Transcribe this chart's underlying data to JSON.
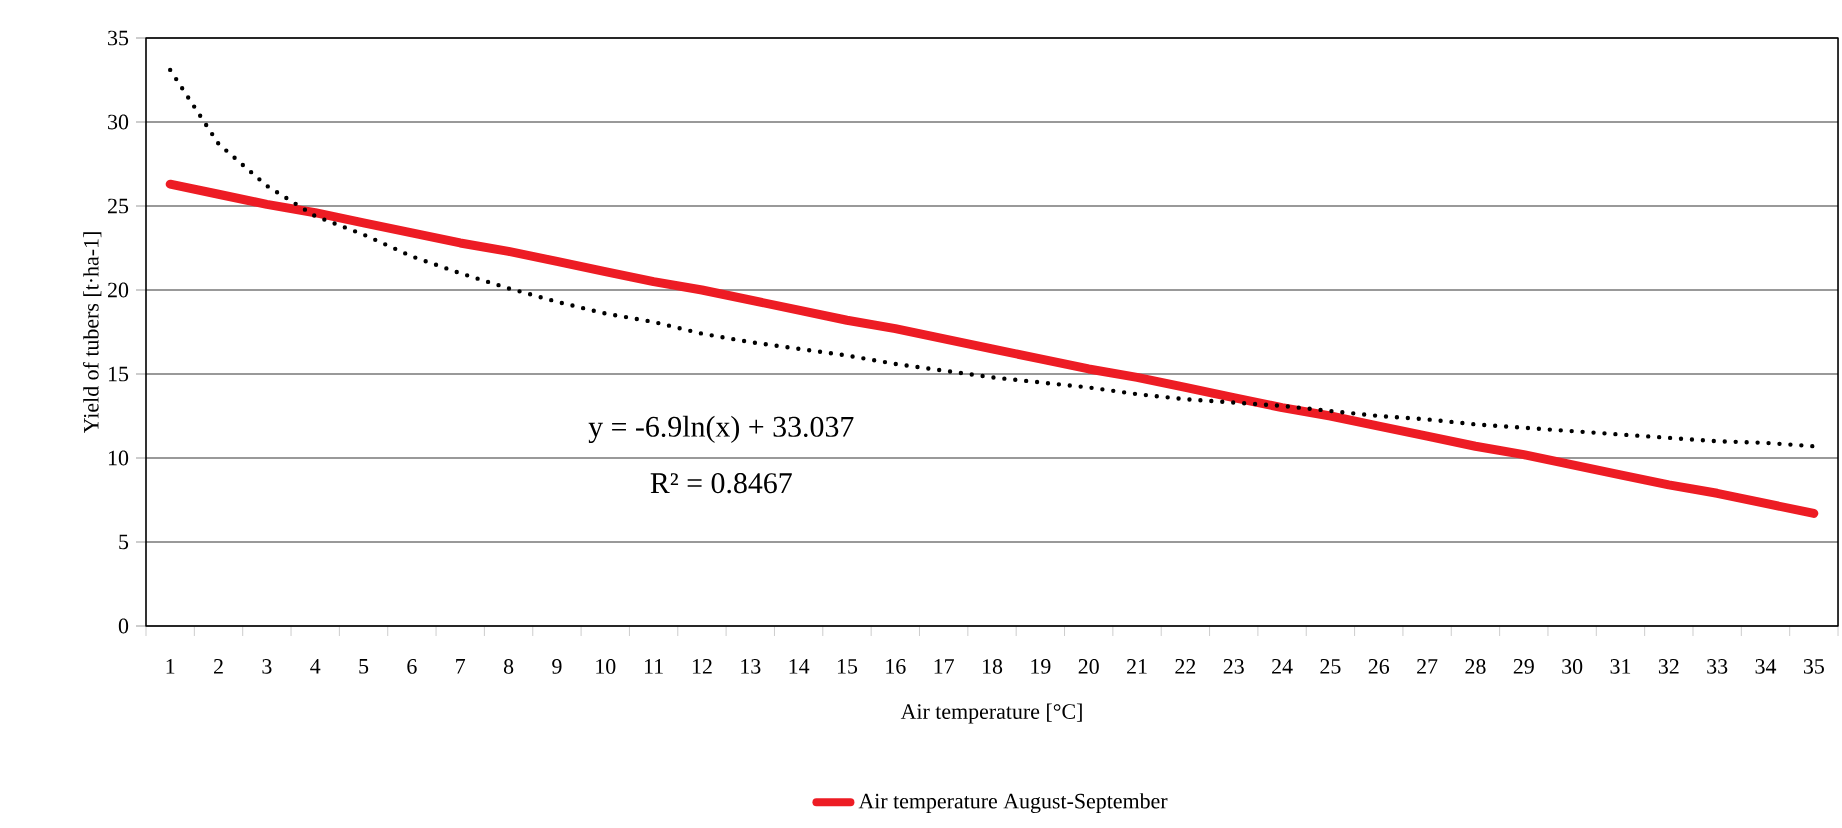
{
  "chart_data": {
    "type": "line",
    "xlabel": "Air temperature [°C]",
    "ylabel": "Yield of tubers [t·ha-1]",
    "categories": [
      "1",
      "2",
      "3",
      "4",
      "5",
      "6",
      "7",
      "8",
      "9",
      "10",
      "11",
      "12",
      "13",
      "14",
      "15",
      "16",
      "17",
      "18",
      "19",
      "20",
      "21",
      "22",
      "23",
      "24",
      "25",
      "26",
      "27",
      "28",
      "29",
      "30",
      "31",
      "32",
      "33",
      "34",
      "35"
    ],
    "series": [
      {
        "name": "Air temperature August-September",
        "color": "#ed1c24",
        "line_style": "solid",
        "values": [
          26.3,
          25.7,
          25.1,
          24.6,
          24.0,
          23.4,
          22.8,
          22.3,
          21.7,
          21.1,
          20.5,
          20.0,
          19.4,
          18.8,
          18.2,
          17.7,
          17.1,
          16.5,
          15.9,
          15.3,
          14.8,
          14.2,
          13.6,
          13.0,
          12.5,
          11.9,
          11.3,
          10.7,
          10.2,
          9.6,
          9.0,
          8.4,
          7.9,
          7.3,
          6.7
        ]
      },
      {
        "color": "#000000",
        "line_style": "dotted",
        "values": [
          33.1,
          28.7,
          26.2,
          24.4,
          23.3,
          22.0,
          21.0,
          20.1,
          19.3,
          18.6,
          18.1,
          17.4,
          16.9,
          16.5,
          16.1,
          15.6,
          15.2,
          14.8,
          14.5,
          14.2,
          13.8,
          13.5,
          13.3,
          13.1,
          12.8,
          12.5,
          12.3,
          12.0,
          11.8,
          11.6,
          11.4,
          11.2,
          11.0,
          10.9,
          10.7
        ]
      }
    ],
    "ylim": [
      0,
      35
    ],
    "yticks": [
      0,
      5,
      10,
      15,
      20,
      25,
      30,
      35
    ],
    "grid": "y",
    "legend": "bottom",
    "marker": "none",
    "annotations": [
      "y = -6.9ln(x) + 33.037",
      "R² = 0.8467"
    ]
  }
}
